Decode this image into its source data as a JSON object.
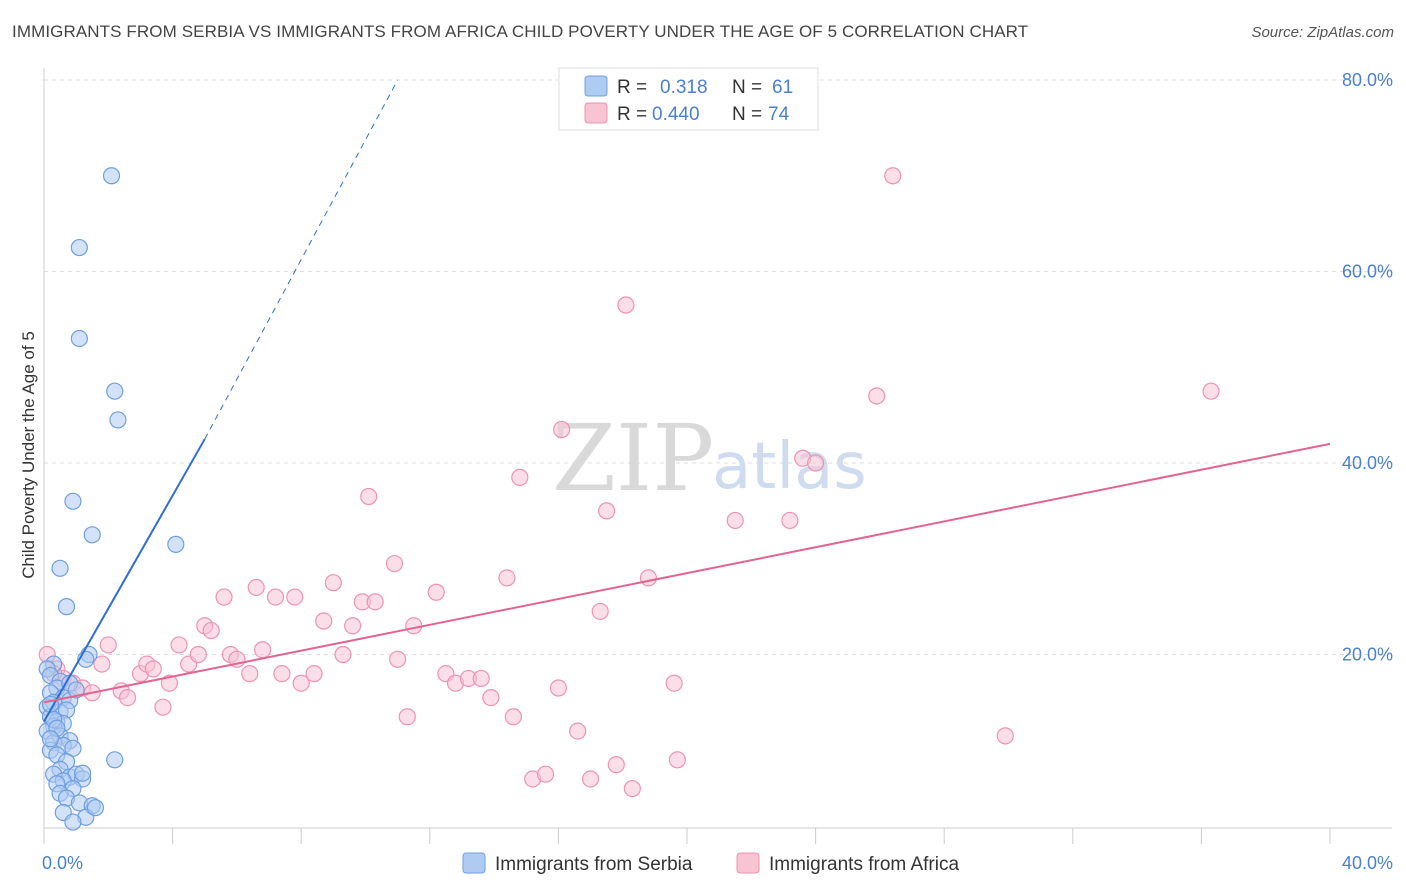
{
  "title": "IMMIGRANTS FROM SERBIA VS IMMIGRANTS FROM AFRICA CHILD POVERTY UNDER THE AGE OF 5 CORRELATION CHART",
  "source": "Source: ZipAtlas.com",
  "watermark": {
    "zip": "ZIP",
    "atlas": "atlas"
  },
  "legend_top": [
    {
      "r_label": "R =",
      "r_value": "0.318",
      "n_label": "N =",
      "n_value": "61"
    },
    {
      "r_label": "R =",
      "r_value": "0.440",
      "n_label": "N =",
      "n_value": "74"
    }
  ],
  "colors": {
    "serbia_fill": "#aecbf2",
    "serbia_stroke": "#6f9fe0",
    "serbia_line": "#2f6fd1",
    "africa_fill": "#f8c3d3",
    "africa_stroke": "#ee93b1",
    "africa_line": "#e2648f",
    "tick_text": "#4a7fd4",
    "grid": "#dddddd"
  },
  "chart_data": {
    "type": "scatter",
    "title": "IMMIGRANTS FROM SERBIA VS IMMIGRANTS FROM AFRICA CHILD POVERTY UNDER THE AGE OF 5 CORRELATION CHART",
    "xlabel": "",
    "ylabel": "Child Poverty Under the Age of 5",
    "xlim": [
      0,
      40
    ],
    "ylim": [
      0,
      80
    ],
    "x_tick_labels": [
      "0.0%",
      "40.0%"
    ],
    "y_tick_labels": [
      "20.0%",
      "40.0%",
      "60.0%",
      "80.0%"
    ],
    "y_ticks": [
      20,
      40,
      60,
      80
    ],
    "grid": true,
    "series": [
      {
        "name": "Immigrants from Serbia",
        "r": 0.318,
        "n": 61,
        "trend": {
          "x0": 0.0,
          "y0": 13.0,
          "x1": 5.0,
          "y1": 42.5,
          "dash_x1": 11.0,
          "dash_y1": 80.0
        },
        "points": [
          [
            0.3,
            19
          ],
          [
            0.1,
            18.5
          ],
          [
            0.2,
            17.8
          ],
          [
            0.5,
            17.2
          ],
          [
            0.4,
            16.5
          ],
          [
            0.2,
            16
          ],
          [
            0.6,
            15.5
          ],
          [
            0.3,
            15
          ],
          [
            0.8,
            15.2
          ],
          [
            0.1,
            14.5
          ],
          [
            0.5,
            14
          ],
          [
            0.7,
            14.2
          ],
          [
            0.2,
            13.5
          ],
          [
            0.4,
            13
          ],
          [
            0.6,
            12.8
          ],
          [
            0.3,
            12.5
          ],
          [
            0.1,
            12
          ],
          [
            0.5,
            11.5
          ],
          [
            0.8,
            11
          ],
          [
            0.3,
            10.8
          ],
          [
            0.6,
            10.5
          ],
          [
            0.2,
            10
          ],
          [
            0.9,
            10.2
          ],
          [
            0.4,
            9.5
          ],
          [
            0.7,
            8.8
          ],
          [
            0.5,
            8
          ],
          [
            0.3,
            7.5
          ],
          [
            0.8,
            7.2
          ],
          [
            1.0,
            7.5
          ],
          [
            0.6,
            6.8
          ],
          [
            0.4,
            6.5
          ],
          [
            1.2,
            7.0
          ],
          [
            0.9,
            6.0
          ],
          [
            0.5,
            5.5
          ],
          [
            0.7,
            5.0
          ],
          [
            1.1,
            4.5
          ],
          [
            1.5,
            4.2
          ],
          [
            0.6,
            3.5
          ],
          [
            1.3,
            3.0
          ],
          [
            0.9,
            2.5
          ],
          [
            1.6,
            4.0
          ],
          [
            2.1,
            70
          ],
          [
            1.1,
            62.5
          ],
          [
            1.1,
            53
          ],
          [
            2.2,
            47.5
          ],
          [
            2.3,
            44.5
          ],
          [
            0.9,
            36
          ],
          [
            1.5,
            32.5
          ],
          [
            4.1,
            31.5
          ],
          [
            0.5,
            29
          ],
          [
            0.7,
            25
          ],
          [
            1.4,
            20
          ],
          [
            1.3,
            19.5
          ],
          [
            2.2,
            9
          ],
          [
            0.8,
            17
          ],
          [
            1.0,
            16.3
          ],
          [
            0.2,
            14.8
          ],
          [
            0.3,
            13.2
          ],
          [
            0.4,
            12.3
          ],
          [
            0.2,
            11.2
          ],
          [
            1.2,
            7.6
          ]
        ]
      },
      {
        "name": "Immigrants from Africa",
        "r": 0.44,
        "n": 74,
        "trend": {
          "x0": 0.0,
          "y0": 15.0,
          "x1": 40.0,
          "y1": 42.0
        },
        "points": [
          [
            0.1,
            20
          ],
          [
            0.4,
            18.5
          ],
          [
            0.6,
            17.5
          ],
          [
            0.9,
            17
          ],
          [
            1.2,
            16.5
          ],
          [
            1.5,
            16
          ],
          [
            2.0,
            21
          ],
          [
            1.8,
            19
          ],
          [
            2.4,
            16.2
          ],
          [
            2.6,
            15.5
          ],
          [
            3.0,
            18
          ],
          [
            3.2,
            19
          ],
          [
            3.4,
            18.5
          ],
          [
            3.7,
            14.5
          ],
          [
            3.9,
            17
          ],
          [
            4.2,
            21
          ],
          [
            4.5,
            19
          ],
          [
            4.8,
            20
          ],
          [
            5.0,
            23
          ],
          [
            5.2,
            22.5
          ],
          [
            5.8,
            20
          ],
          [
            5.6,
            26
          ],
          [
            6.0,
            19.5
          ],
          [
            6.4,
            18
          ],
          [
            6.6,
            27
          ],
          [
            6.8,
            20.5
          ],
          [
            7.2,
            26
          ],
          [
            7.8,
            26
          ],
          [
            7.4,
            18
          ],
          [
            8.0,
            17
          ],
          [
            8.4,
            18
          ],
          [
            8.7,
            23.5
          ],
          [
            9.0,
            27.5
          ],
          [
            9.3,
            20
          ],
          [
            9.6,
            23
          ],
          [
            9.9,
            25.5
          ],
          [
            10.3,
            25.5
          ],
          [
            10.1,
            36.5
          ],
          [
            10.9,
            29.5
          ],
          [
            11.0,
            19.5
          ],
          [
            11.5,
            23
          ],
          [
            11.3,
            13.5
          ],
          [
            12.2,
            26.5
          ],
          [
            12.5,
            18
          ],
          [
            12.8,
            17
          ],
          [
            13.2,
            17.5
          ],
          [
            13.6,
            17.5
          ],
          [
            13.9,
            15.5
          ],
          [
            14.4,
            28
          ],
          [
            14.6,
            13.5
          ],
          [
            14.8,
            38.5
          ],
          [
            15.2,
            7
          ],
          [
            15.6,
            7.5
          ],
          [
            16.1,
            43.5
          ],
          [
            16.0,
            16.5
          ],
          [
            16.6,
            12
          ],
          [
            17.0,
            7
          ],
          [
            17.3,
            24.5
          ],
          [
            17.5,
            35
          ],
          [
            17.8,
            8.5
          ],
          [
            18.1,
            56.5
          ],
          [
            18.3,
            6
          ],
          [
            18.8,
            28
          ],
          [
            19.6,
            17
          ],
          [
            19.7,
            9
          ],
          [
            21.5,
            34
          ],
          [
            23.2,
            34
          ],
          [
            23.6,
            40.5
          ],
          [
            24.0,
            40
          ],
          [
            25.9,
            47
          ],
          [
            26.4,
            70
          ],
          [
            29.9,
            11.5
          ],
          [
            36.3,
            47.5
          ],
          [
            0.3,
            18
          ]
        ]
      }
    ]
  },
  "legend_bottom": [
    "Immigrants from Serbia",
    "Immigrants from Africa"
  ]
}
